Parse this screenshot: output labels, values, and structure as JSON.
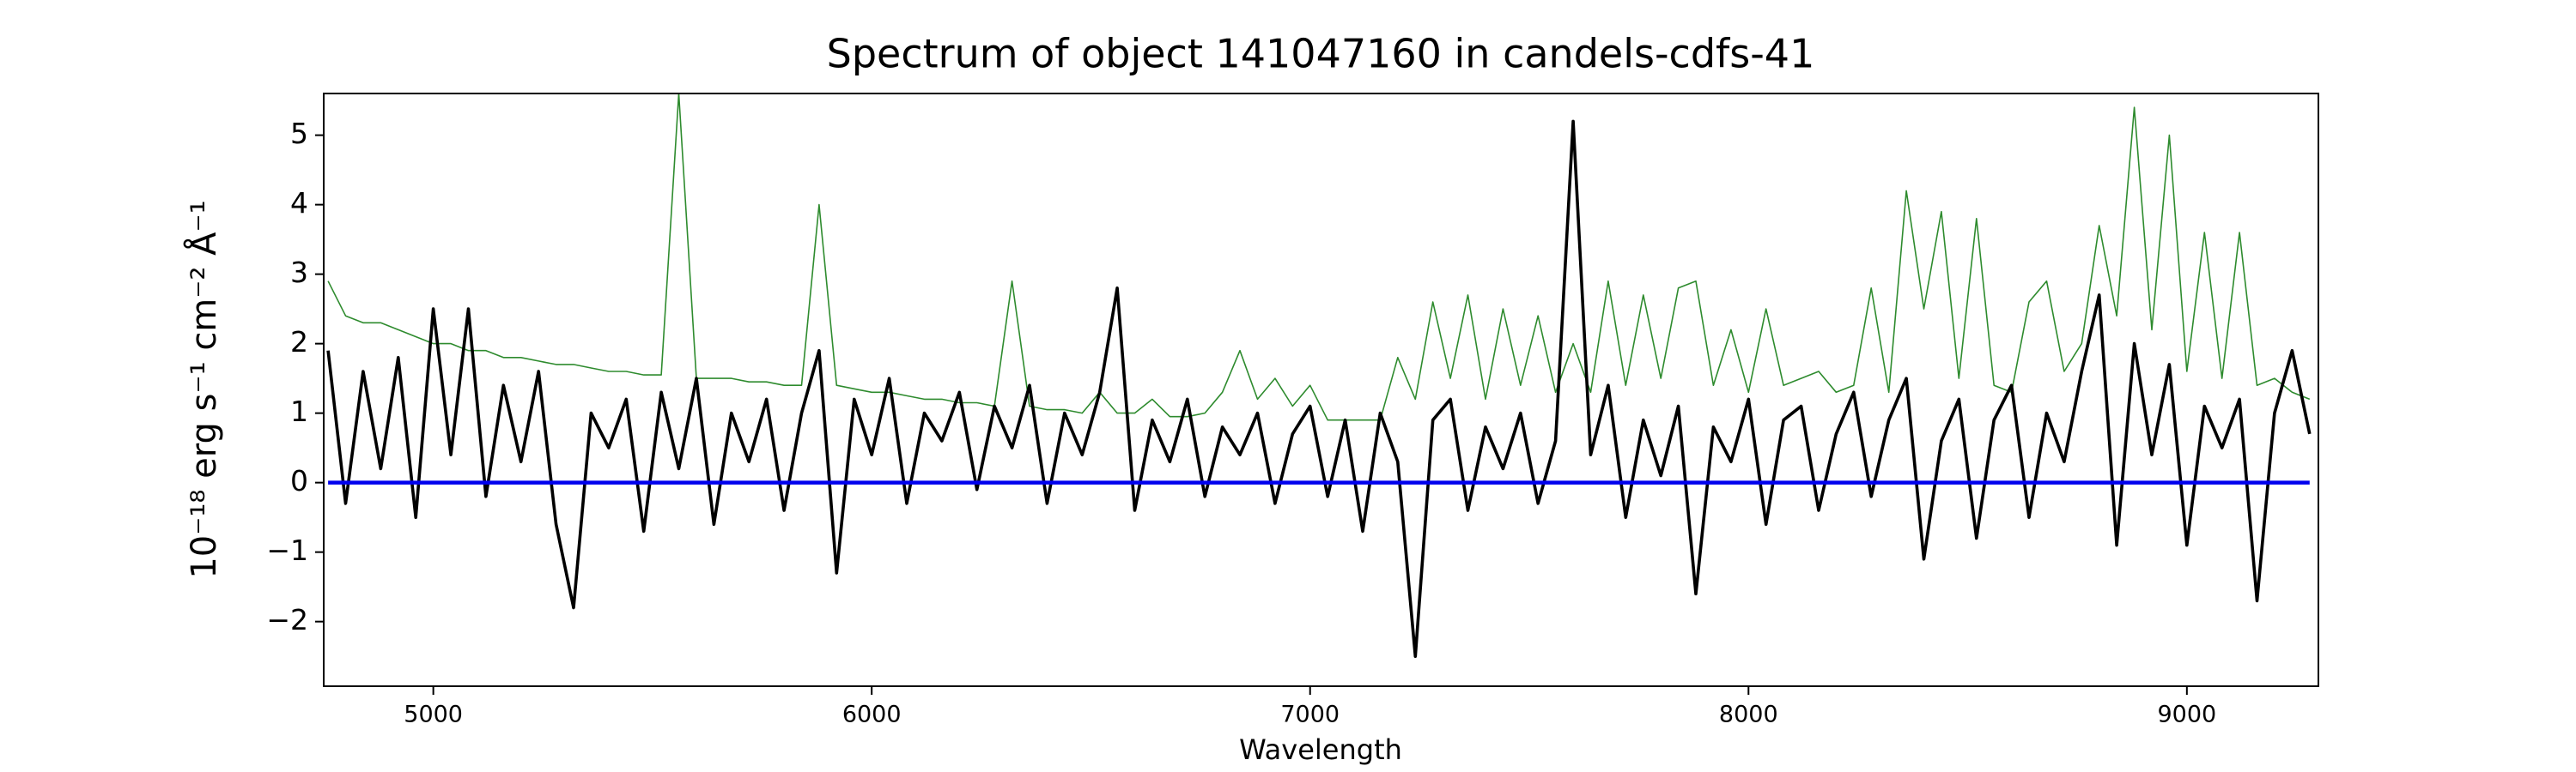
{
  "chart_data": {
    "type": "line",
    "title": "Spectrum of object 141047160 in candels-cdfs-41",
    "x_label": "Wavelength",
    "y_label": "10⁻¹⁸ erg s⁻¹ cm⁻² Å⁻¹",
    "x": [
      4760,
      4800,
      4840,
      4880,
      4920,
      4960,
      5000,
      5040,
      5080,
      5120,
      5160,
      5200,
      5240,
      5280,
      5320,
      5360,
      5400,
      5440,
      5480,
      5520,
      5560,
      5600,
      5640,
      5680,
      5720,
      5760,
      5800,
      5840,
      5880,
      5920,
      5960,
      6000,
      6040,
      6080,
      6120,
      6160,
      6200,
      6240,
      6280,
      6320,
      6360,
      6400,
      6440,
      6480,
      6520,
      6560,
      6600,
      6640,
      6680,
      6720,
      6760,
      6800,
      6840,
      6880,
      6920,
      6960,
      7000,
      7040,
      7080,
      7120,
      7160,
      7200,
      7240,
      7280,
      7320,
      7360,
      7400,
      7440,
      7480,
      7520,
      7560,
      7600,
      7640,
      7680,
      7720,
      7760,
      7800,
      7840,
      7880,
      7920,
      7960,
      8000,
      8040,
      8080,
      8120,
      8160,
      8200,
      8240,
      8280,
      8320,
      8360,
      8400,
      8440,
      8480,
      8520,
      8560,
      8600,
      8640,
      8680,
      8720,
      8760,
      8800,
      8840,
      8880,
      8920,
      8960,
      9000,
      9040,
      9080,
      9120,
      9160,
      9200,
      9240,
      9280
    ],
    "series": [
      {
        "color": "#2e8b2e",
        "values": [
          2.9,
          2.4,
          2.3,
          2.3,
          2.2,
          2.1,
          2.0,
          2.0,
          1.9,
          1.9,
          1.8,
          1.8,
          1.75,
          1.7,
          1.7,
          1.65,
          1.6,
          1.6,
          1.55,
          1.55,
          5.6,
          1.5,
          1.5,
          1.5,
          1.45,
          1.45,
          1.4,
          1.4,
          4.0,
          1.4,
          1.35,
          1.3,
          1.3,
          1.25,
          1.2,
          1.2,
          1.15,
          1.15,
          1.1,
          2.9,
          1.1,
          1.05,
          1.05,
          1.0,
          1.3,
          1.0,
          1.0,
          1.2,
          0.95,
          0.95,
          1.0,
          1.3,
          1.9,
          1.2,
          1.5,
          1.1,
          1.4,
          0.9,
          0.9,
          0.9,
          0.9,
          1.8,
          1.2,
          2.6,
          1.5,
          2.7,
          1.2,
          2.5,
          1.4,
          2.4,
          1.3,
          2.0,
          1.3,
          2.9,
          1.4,
          2.7,
          1.5,
          2.8,
          2.9,
          1.4,
          2.2,
          1.3,
          2.5,
          1.4,
          1.5,
          1.6,
          1.3,
          1.4,
          2.8,
          1.3,
          4.2,
          2.5,
          3.9,
          1.5,
          3.8,
          1.4,
          1.3,
          2.6,
          2.9,
          1.6,
          2.0,
          3.7,
          2.4,
          5.4,
          2.2,
          5.0,
          1.6,
          3.6,
          1.5,
          3.6,
          1.4,
          1.5,
          1.3,
          1.2
        ]
      },
      {
        "color": "#000000",
        "values": [
          1.9,
          -0.3,
          1.6,
          0.2,
          1.8,
          -0.5,
          2.5,
          0.4,
          2.5,
          -0.2,
          1.4,
          0.3,
          1.6,
          -0.6,
          -1.8,
          1.0,
          0.5,
          1.2,
          -0.7,
          1.3,
          0.2,
          1.5,
          -0.6,
          1.0,
          0.3,
          1.2,
          -0.4,
          1.0,
          1.9,
          -1.3,
          1.2,
          0.4,
          1.5,
          -0.3,
          1.0,
          0.6,
          1.3,
          -0.1,
          1.1,
          0.5,
          1.4,
          -0.3,
          1.0,
          0.4,
          1.3,
          2.8,
          -0.4,
          0.9,
          0.3,
          1.2,
          -0.2,
          0.8,
          0.4,
          1.0,
          -0.3,
          0.7,
          1.1,
          -0.2,
          0.9,
          -0.7,
          1.0,
          0.3,
          -2.5,
          0.9,
          1.2,
          -0.4,
          0.8,
          0.2,
          1.0,
          -0.3,
          0.6,
          5.2,
          0.4,
          1.4,
          -0.5,
          0.9,
          0.1,
          1.1,
          -1.6,
          0.8,
          0.3,
          1.2,
          -0.6,
          0.9,
          1.1,
          -0.4,
          0.7,
          1.3,
          -0.2,
          0.9,
          1.5,
          -1.1,
          0.6,
          1.2,
          -0.8,
          0.9,
          1.4,
          -0.5,
          1.0,
          0.3,
          1.6,
          2.7,
          -0.9,
          2.0,
          0.4,
          1.7,
          -0.9,
          1.1,
          0.5,
          1.2,
          -1.7,
          1.0,
          1.9,
          0.7
        ]
      },
      {
        "color": "#0000ee",
        "values": [
          0,
          0,
          0,
          0,
          0,
          0,
          0,
          0,
          0,
          0,
          0,
          0,
          0,
          0,
          0,
          0,
          0,
          0,
          0,
          0,
          0,
          0,
          0,
          0,
          0,
          0,
          0,
          0,
          0,
          0,
          0,
          0,
          0,
          0,
          0,
          0,
          0,
          0,
          0,
          0,
          0,
          0,
          0,
          0,
          0,
          0,
          0,
          0,
          0,
          0,
          0,
          0,
          0,
          0,
          0,
          0,
          0,
          0,
          0,
          0,
          0,
          0,
          0,
          0,
          0,
          0,
          0,
          0,
          0,
          0,
          0,
          0,
          0,
          0,
          0,
          0,
          0,
          0,
          0,
          0,
          0,
          0,
          0,
          0,
          0,
          0,
          0,
          0,
          0,
          0,
          0,
          0,
          0,
          0,
          0,
          0,
          0,
          0,
          0,
          0,
          0,
          0,
          0,
          0,
          0,
          0,
          0,
          0,
          0,
          0,
          0,
          0,
          0,
          0
        ]
      }
    ],
    "xlim": [
      4750,
      9300
    ],
    "xticks": [
      5000,
      6000,
      7000,
      8000,
      9000
    ],
    "ylim": [
      -2.93,
      5.6
    ],
    "yticks": [
      {
        "value": -2,
        "label": "−2"
      },
      {
        "value": -1,
        "label": "−1"
      },
      0,
      1,
      2,
      3,
      4,
      5
    ],
    "grid": false
  }
}
